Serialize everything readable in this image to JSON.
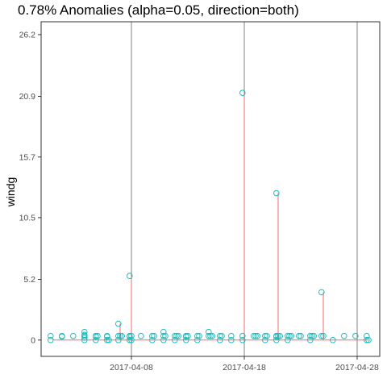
{
  "chart_data": {
    "type": "scatter",
    "title": "0.78% Anomalies (alpha=0.05, direction=both)",
    "xlabel": "",
    "ylabel": "windg",
    "x_range": [
      "2017-03-31",
      "2017-04-30"
    ],
    "x_ticks": [
      "2017-04-08",
      "2017-04-18",
      "2017-04-28"
    ],
    "y_range": [
      -1.4,
      27.3
    ],
    "y_ticks": [
      "0",
      "5.2",
      "10.5",
      "15.7",
      "20.9",
      "26.2"
    ],
    "vertical_reference_lines": [
      "2017-04-08",
      "2017-04-18",
      "2017-04-28"
    ],
    "grid": false,
    "colors": {
      "points": "#17bec1",
      "anomaly_segments": "#f06b6b",
      "reference_lines": "#808080",
      "panel_border": "#333333"
    },
    "points": [
      [
        "2017-04-01",
        0
      ],
      [
        "2017-04-01",
        0.35
      ],
      [
        "2017-04-02",
        0.3
      ],
      [
        "2017-04-02",
        0.35
      ],
      [
        "2017-04-03",
        0.35
      ],
      [
        "2017-04-04",
        0.35
      ],
      [
        "2017-04-04",
        0
      ],
      [
        "2017-04-04",
        0.2
      ],
      [
        "2017-04-04",
        0.45
      ],
      [
        "2017-04-04",
        0.7
      ],
      [
        "2017-04-05",
        0.35
      ],
      [
        "2017-04-05",
        0.3
      ],
      [
        "2017-04-05",
        0
      ],
      [
        "2017-04-05",
        0.35
      ],
      [
        "2017-04-06",
        0
      ],
      [
        "2017-04-06",
        0.35
      ],
      [
        "2017-04-06",
        0.3
      ],
      [
        "2017-04-06",
        0
      ],
      [
        "2017-04-07",
        0.35
      ],
      [
        "2017-04-07",
        0
      ],
      [
        "2017-04-07",
        0.35
      ],
      [
        "2017-04-07",
        1.4
      ],
      [
        "2017-04-07",
        0.35
      ],
      [
        "2017-04-08",
        0
      ],
      [
        "2017-04-08",
        0.35
      ],
      [
        "2017-04-08",
        0.3
      ],
      [
        "2017-04-08",
        0
      ],
      [
        "2017-04-08",
        0.35
      ],
      [
        "2017-04-08",
        5.5
      ],
      [
        "2017-04-09",
        0.35
      ],
      [
        "2017-04-10",
        0
      ],
      [
        "2017-04-10",
        0.35
      ],
      [
        "2017-04-10",
        0.35
      ],
      [
        "2017-04-11",
        0
      ],
      [
        "2017-04-11",
        0.35
      ],
      [
        "2017-04-11",
        0.7
      ],
      [
        "2017-04-11",
        0.35
      ],
      [
        "2017-04-12",
        0.35
      ],
      [
        "2017-04-12",
        0
      ],
      [
        "2017-04-12",
        0.35
      ],
      [
        "2017-04-12",
        0.35
      ],
      [
        "2017-04-13",
        0
      ],
      [
        "2017-04-13",
        0.35
      ],
      [
        "2017-04-13",
        0.3
      ],
      [
        "2017-04-13",
        0.35
      ],
      [
        "2017-04-14",
        0
      ],
      [
        "2017-04-14",
        0.35
      ],
      [
        "2017-04-14",
        0.35
      ],
      [
        "2017-04-15",
        0.35
      ],
      [
        "2017-04-15",
        0.7
      ],
      [
        "2017-04-15",
        0.35
      ],
      [
        "2017-04-15",
        0.35
      ],
      [
        "2017-04-16",
        0
      ],
      [
        "2017-04-16",
        0.35
      ],
      [
        "2017-04-16",
        0.35
      ],
      [
        "2017-04-17",
        0.35
      ],
      [
        "2017-04-17",
        0
      ],
      [
        "2017-04-18",
        0.35
      ],
      [
        "2017-04-18",
        21.2
      ],
      [
        "2017-04-18",
        0
      ],
      [
        "2017-04-19",
        0.35
      ],
      [
        "2017-04-19",
        0.35
      ],
      [
        "2017-04-19",
        0.35
      ],
      [
        "2017-04-20",
        0.35
      ],
      [
        "2017-04-20",
        0
      ],
      [
        "2017-04-20",
        0.35
      ],
      [
        "2017-04-21",
        0.35
      ],
      [
        "2017-04-21",
        0
      ],
      [
        "2017-04-21",
        0.3
      ],
      [
        "2017-04-21",
        0.35
      ],
      [
        "2017-04-21",
        12.6
      ],
      [
        "2017-04-21",
        0.35
      ],
      [
        "2017-04-22",
        0
      ],
      [
        "2017-04-22",
        0.35
      ],
      [
        "2017-04-22",
        0.35
      ],
      [
        "2017-04-22",
        0.35
      ],
      [
        "2017-04-23",
        0.35
      ],
      [
        "2017-04-23",
        0.35
      ],
      [
        "2017-04-24",
        0
      ],
      [
        "2017-04-24",
        0.35
      ],
      [
        "2017-04-24",
        0.35
      ],
      [
        "2017-04-24",
        0.35
      ],
      [
        "2017-04-25",
        0.35
      ],
      [
        "2017-04-25",
        0.35
      ],
      [
        "2017-04-25",
        4.1
      ],
      [
        "2017-04-26",
        0
      ],
      [
        "2017-04-27",
        0.35
      ],
      [
        "2017-04-28",
        0.35
      ],
      [
        "2017-04-29",
        0
      ],
      [
        "2017-04-29",
        0.35
      ],
      [
        "2017-04-29",
        0
      ]
    ],
    "anomalies": [
      [
        "2017-04-07",
        1.4
      ],
      [
        "2017-04-08",
        5.5
      ],
      [
        "2017-04-18",
        21.2
      ],
      [
        "2017-04-21",
        12.6
      ],
      [
        "2017-04-25",
        4.1
      ]
    ]
  }
}
